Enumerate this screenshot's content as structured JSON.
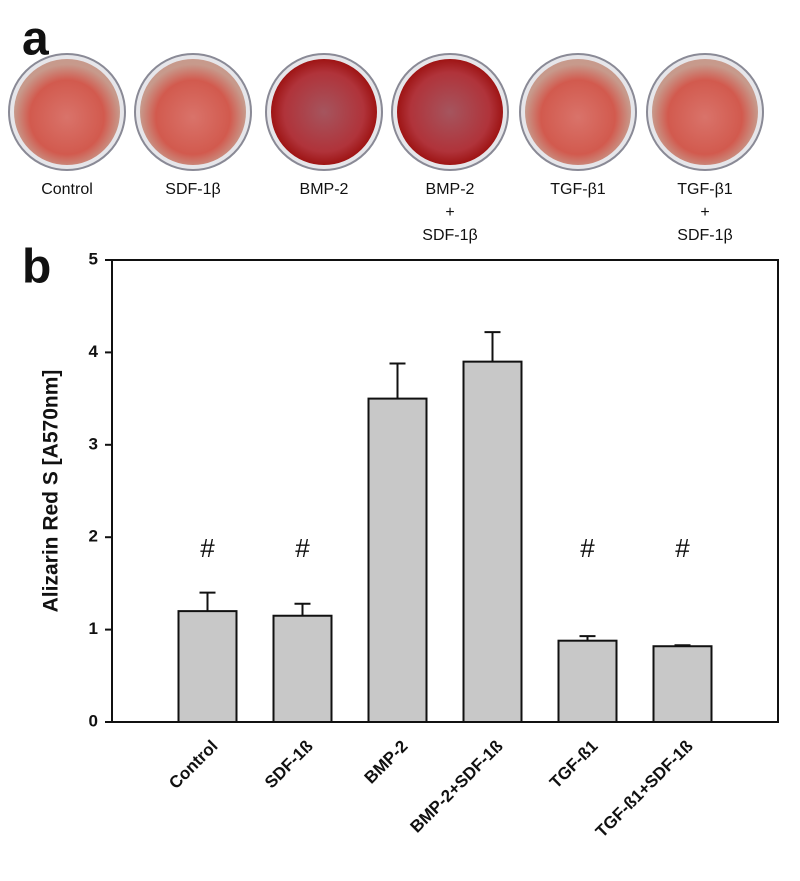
{
  "panel_a": {
    "label": "a",
    "wells": [
      [
        "Control"
      ],
      [
        "SDF-1β"
      ],
      [
        "BMP-2"
      ],
      [
        "BMP-2",
        "+",
        "SDF-1β"
      ],
      [
        "TGF-β1"
      ],
      [
        "TGF-β1",
        "+",
        "SDF-1β"
      ]
    ]
  },
  "chart_data": {
    "type": "bar",
    "panel_label": "b",
    "y_label": "Alizarin Red S [A570nm]",
    "categories": [
      "Control",
      "SDF-1ß",
      "BMP-2",
      "BMP-2+SDF-1ß",
      "TGF-ß1",
      "TGF-ß1+SDF-1ß"
    ],
    "values": [
      1.2,
      1.15,
      3.5,
      3.9,
      0.88,
      0.82
    ],
    "errors": [
      0.2,
      0.13,
      0.38,
      0.32,
      0.05,
      0.01
    ],
    "annotations": [
      "#",
      "#",
      null,
      null,
      "#",
      "#"
    ],
    "color": "#c8c8c8",
    "ylim": [
      0,
      5
    ],
    "yticks": [
      0,
      1,
      2,
      3,
      4,
      5
    ]
  }
}
